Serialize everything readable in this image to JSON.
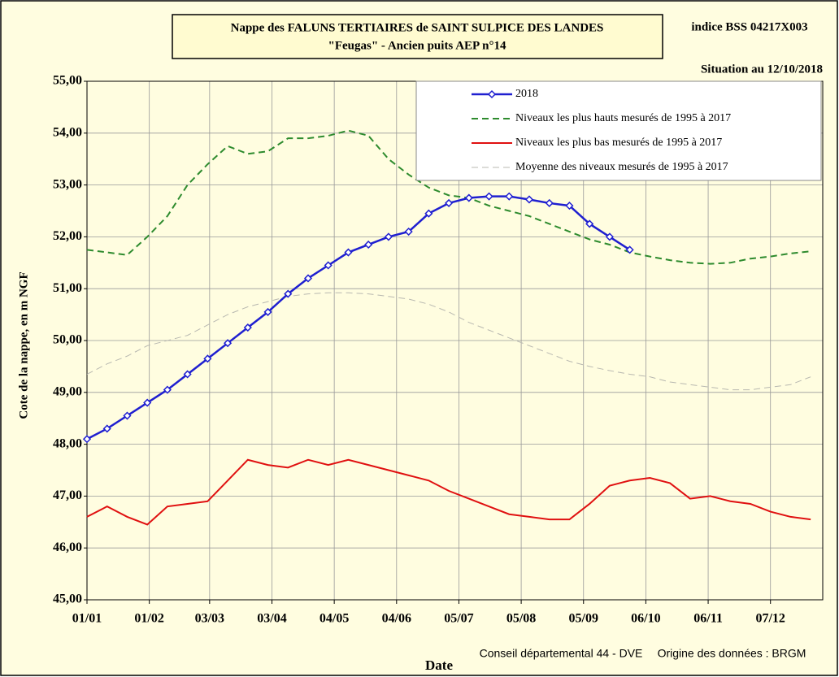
{
  "chart_data": {
    "type": "line",
    "title": "Nappe des FALUNS TERTIAIRES de SAINT SULPICE DES LANDES",
    "subtitle": "\"Feugas\" - Ancien puits AEP n°14",
    "annotations": [
      "indice BSS 04217X003",
      "Situation au 12/10/2018",
      "Conseil départemental 44  - DVE",
      "Origine des données : BRGM"
    ],
    "x_label": "Date",
    "y_label": "Cote de la nappe, en m NGF",
    "x": [
      1,
      11,
      21,
      31,
      41,
      51,
      61,
      71,
      81,
      91,
      101,
      111,
      121,
      131,
      141,
      151,
      161,
      171,
      181,
      191,
      201,
      211,
      221,
      231,
      241,
      251,
      261,
      271,
      281,
      291,
      301,
      311,
      321,
      331,
      341,
      351,
      361
    ],
    "series": [
      {
        "name": "2018",
        "color": "#1f1fd0",
        "line_style": "solid",
        "marker": "diamond",
        "values": [
          48.1,
          48.3,
          48.55,
          48.8,
          49.05,
          49.35,
          49.65,
          49.95,
          50.25,
          50.55,
          50.9,
          51.2,
          51.45,
          51.7,
          51.85,
          52.0,
          52.1,
          52.45,
          52.65,
          52.75,
          52.78,
          52.78,
          52.72,
          52.65,
          52.6,
          52.25,
          52.0,
          51.75,
          null,
          null,
          null,
          null,
          null,
          null,
          null,
          null,
          null
        ]
      },
      {
        "name": "Niveaux les plus hauts mesurés de 1995 à 2017",
        "color": "#2e8b2e",
        "line_style": "dashed",
        "values": [
          51.75,
          51.7,
          51.65,
          52.0,
          52.4,
          53.0,
          53.4,
          53.75,
          53.6,
          53.65,
          53.9,
          53.9,
          53.95,
          54.05,
          53.95,
          53.5,
          53.2,
          52.95,
          52.8,
          52.75,
          52.6,
          52.5,
          52.4,
          52.25,
          52.1,
          51.95,
          51.85,
          51.7,
          51.62,
          51.55,
          51.5,
          51.48,
          51.5,
          51.58,
          51.62,
          51.68,
          51.72
        ]
      },
      {
        "name": "Niveaux les plus bas mesurés de 1995 à 2017",
        "color": "#e01010",
        "line_style": "solid",
        "values": [
          46.6,
          46.8,
          46.6,
          46.45,
          46.8,
          46.85,
          46.9,
          47.3,
          47.7,
          47.6,
          47.55,
          47.7,
          47.6,
          47.7,
          47.6,
          47.5,
          47.4,
          47.3,
          47.1,
          46.95,
          46.8,
          46.65,
          46.6,
          46.55,
          46.55,
          46.85,
          47.2,
          47.3,
          47.35,
          47.25,
          46.95,
          47.0,
          46.9,
          46.85,
          46.7,
          46.6,
          46.55
        ]
      },
      {
        "name": "Moyenne des niveaux mesurés de 1995 à 2017",
        "color": "#b8b8b0",
        "line_style": "dashed",
        "values": [
          49.35,
          49.55,
          49.7,
          49.9,
          50.0,
          50.1,
          50.3,
          50.5,
          50.65,
          50.75,
          50.85,
          50.9,
          50.92,
          50.92,
          50.9,
          50.85,
          50.8,
          50.7,
          50.55,
          50.35,
          50.2,
          50.05,
          49.9,
          49.75,
          49.6,
          49.5,
          49.42,
          49.35,
          49.3,
          49.2,
          49.15,
          49.1,
          49.05,
          49.05,
          49.1,
          49.15,
          49.3
        ]
      }
    ],
    "xlim": [
      1,
      367
    ],
    "xticks": [
      {
        "value": 1,
        "label": "01/01"
      },
      {
        "value": 32,
        "label": "01/02"
      },
      {
        "value": 62,
        "label": "03/03"
      },
      {
        "value": 93,
        "label": "03/04"
      },
      {
        "value": 124,
        "label": "04/05"
      },
      {
        "value": 155,
        "label": "04/06"
      },
      {
        "value": 186,
        "label": "05/07"
      },
      {
        "value": 217,
        "label": "05/08"
      },
      {
        "value": 248,
        "label": "05/09"
      },
      {
        "value": 279,
        "label": "06/10"
      },
      {
        "value": 310,
        "label": "06/11"
      },
      {
        "value": 341,
        "label": "07/12"
      }
    ],
    "ylim": [
      45,
      55
    ],
    "yticks": [
      {
        "value": 45,
        "label": "45,00"
      },
      {
        "value": 46,
        "label": "46,00"
      },
      {
        "value": 47,
        "label": "47,00"
      },
      {
        "value": 48,
        "label": "48,00"
      },
      {
        "value": 49,
        "label": "49,00"
      },
      {
        "value": 50,
        "label": "50,00"
      },
      {
        "value": 51,
        "label": "51,00"
      },
      {
        "value": 52,
        "label": "52,00"
      },
      {
        "value": 53,
        "label": "53,00"
      },
      {
        "value": 54,
        "label": "54,00"
      },
      {
        "value": 55,
        "label": "55,00"
      }
    ],
    "grid": true,
    "legend": "top-right",
    "background": "#fffde0"
  }
}
